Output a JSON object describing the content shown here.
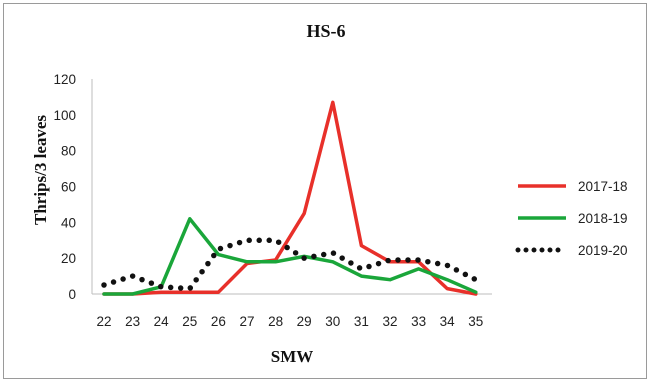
{
  "chart_data": {
    "type": "line",
    "title": "HS-6",
    "xlabel": "SMW",
    "ylabel": "Thrips/3 leaves",
    "categories": [
      "22",
      "23",
      "24",
      "25",
      "26",
      "27",
      "28",
      "29",
      "30",
      "31",
      "32",
      "33",
      "34",
      "35"
    ],
    "ylim": [
      0,
      120
    ],
    "yticks": [
      0,
      20,
      40,
      60,
      80,
      100,
      120
    ],
    "grid": false,
    "legend_position": "right",
    "series": [
      {
        "name": "2017-18",
        "color": "#e8302a",
        "style": "solid",
        "values": [
          0,
          0,
          1,
          1,
          1,
          17,
          19,
          45,
          107,
          27,
          18,
          18,
          3,
          0
        ]
      },
      {
        "name": "2018-19",
        "color": "#1aa63a",
        "style": "solid",
        "values": [
          0,
          0,
          4,
          42,
          22,
          18,
          18,
          21,
          18,
          10,
          8,
          14,
          8,
          1
        ]
      },
      {
        "name": "2019-20",
        "color": "#111111",
        "style": "dotted",
        "values": [
          5,
          10,
          4,
          3,
          25,
          30,
          30,
          20,
          23,
          14,
          19,
          19,
          16,
          8
        ]
      }
    ]
  }
}
